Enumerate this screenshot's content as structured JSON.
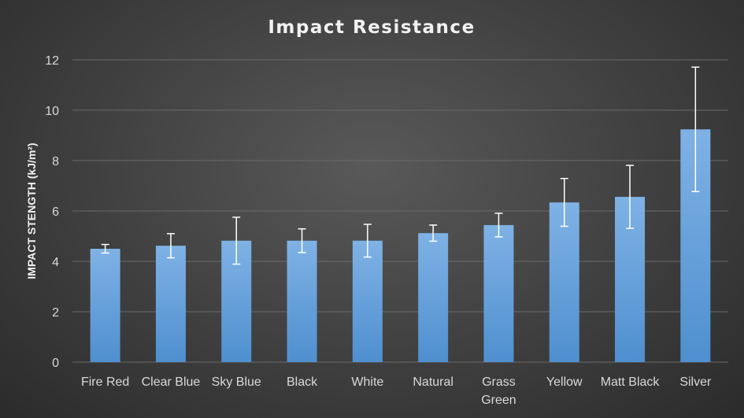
{
  "chart_data": {
    "type": "bar",
    "title": "Impact Resistance",
    "xlabel": "",
    "ylabel": "IMPACT STENGTH (kJ/m²)",
    "ylim": [
      0,
      12
    ],
    "yticks": [
      "0",
      "2",
      "4",
      "6",
      "8",
      "10",
      "12"
    ],
    "grid": true,
    "categories": [
      "Fire Red",
      "Clear Blue",
      "Sky Blue",
      "Black",
      "White",
      "Natural",
      "Grass Green",
      "Yellow",
      "Matt Black",
      "Silver"
    ],
    "category_lines": [
      [
        "Fire Red"
      ],
      [
        "Clear Blue"
      ],
      [
        "Sky Blue"
      ],
      [
        "Black"
      ],
      [
        "White"
      ],
      [
        "Natural"
      ],
      [
        "Grass",
        "Green"
      ],
      [
        "Yellow"
      ],
      [
        "Matt Black"
      ],
      [
        "Silver"
      ]
    ],
    "values": [
      4.5,
      4.62,
      4.82,
      4.82,
      4.82,
      5.12,
      5.44,
      6.34,
      6.56,
      9.24
    ],
    "error": [
      0.17,
      0.48,
      0.93,
      0.47,
      0.65,
      0.32,
      0.47,
      0.95,
      1.25,
      2.47
    ],
    "bar_color": "#5b9bd5",
    "bar_color_light": "#7fb2e5"
  }
}
